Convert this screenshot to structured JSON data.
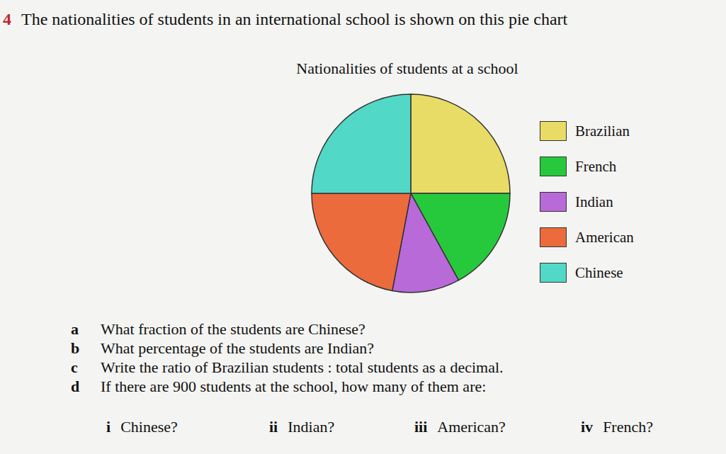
{
  "question_number": "4",
  "question": "The nationalities of students in an international school is shown on this pie chart",
  "chart_data": {
    "type": "pie",
    "title": "Nationalities of students at a school",
    "categories": [
      "Brazilian",
      "French",
      "Indian",
      "American",
      "Chinese"
    ],
    "values": [
      25,
      17,
      11,
      22,
      25
    ],
    "colors": [
      "#e9dc66",
      "#27c93c",
      "#b86ad9",
      "#ec6b3c",
      "#52d8c6"
    ],
    "legend": "right"
  },
  "parts": [
    {
      "label": "a",
      "text": "What fraction of the students are Chinese?"
    },
    {
      "label": "b",
      "text": "What percentage of the students are Indian?"
    },
    {
      "label": "c",
      "text": "Write the ratio of Brazilian students : total students as a decimal."
    },
    {
      "label": "d",
      "text": "If there are 900 students at the school, how many of them are:",
      "subparts": [
        {
          "label": "i",
          "text": "Chinese?"
        },
        {
          "label": "ii",
          "text": "Indian?"
        },
        {
          "label": "iii",
          "text": "American?"
        },
        {
          "label": "iv",
          "text": "French?"
        }
      ]
    }
  ]
}
